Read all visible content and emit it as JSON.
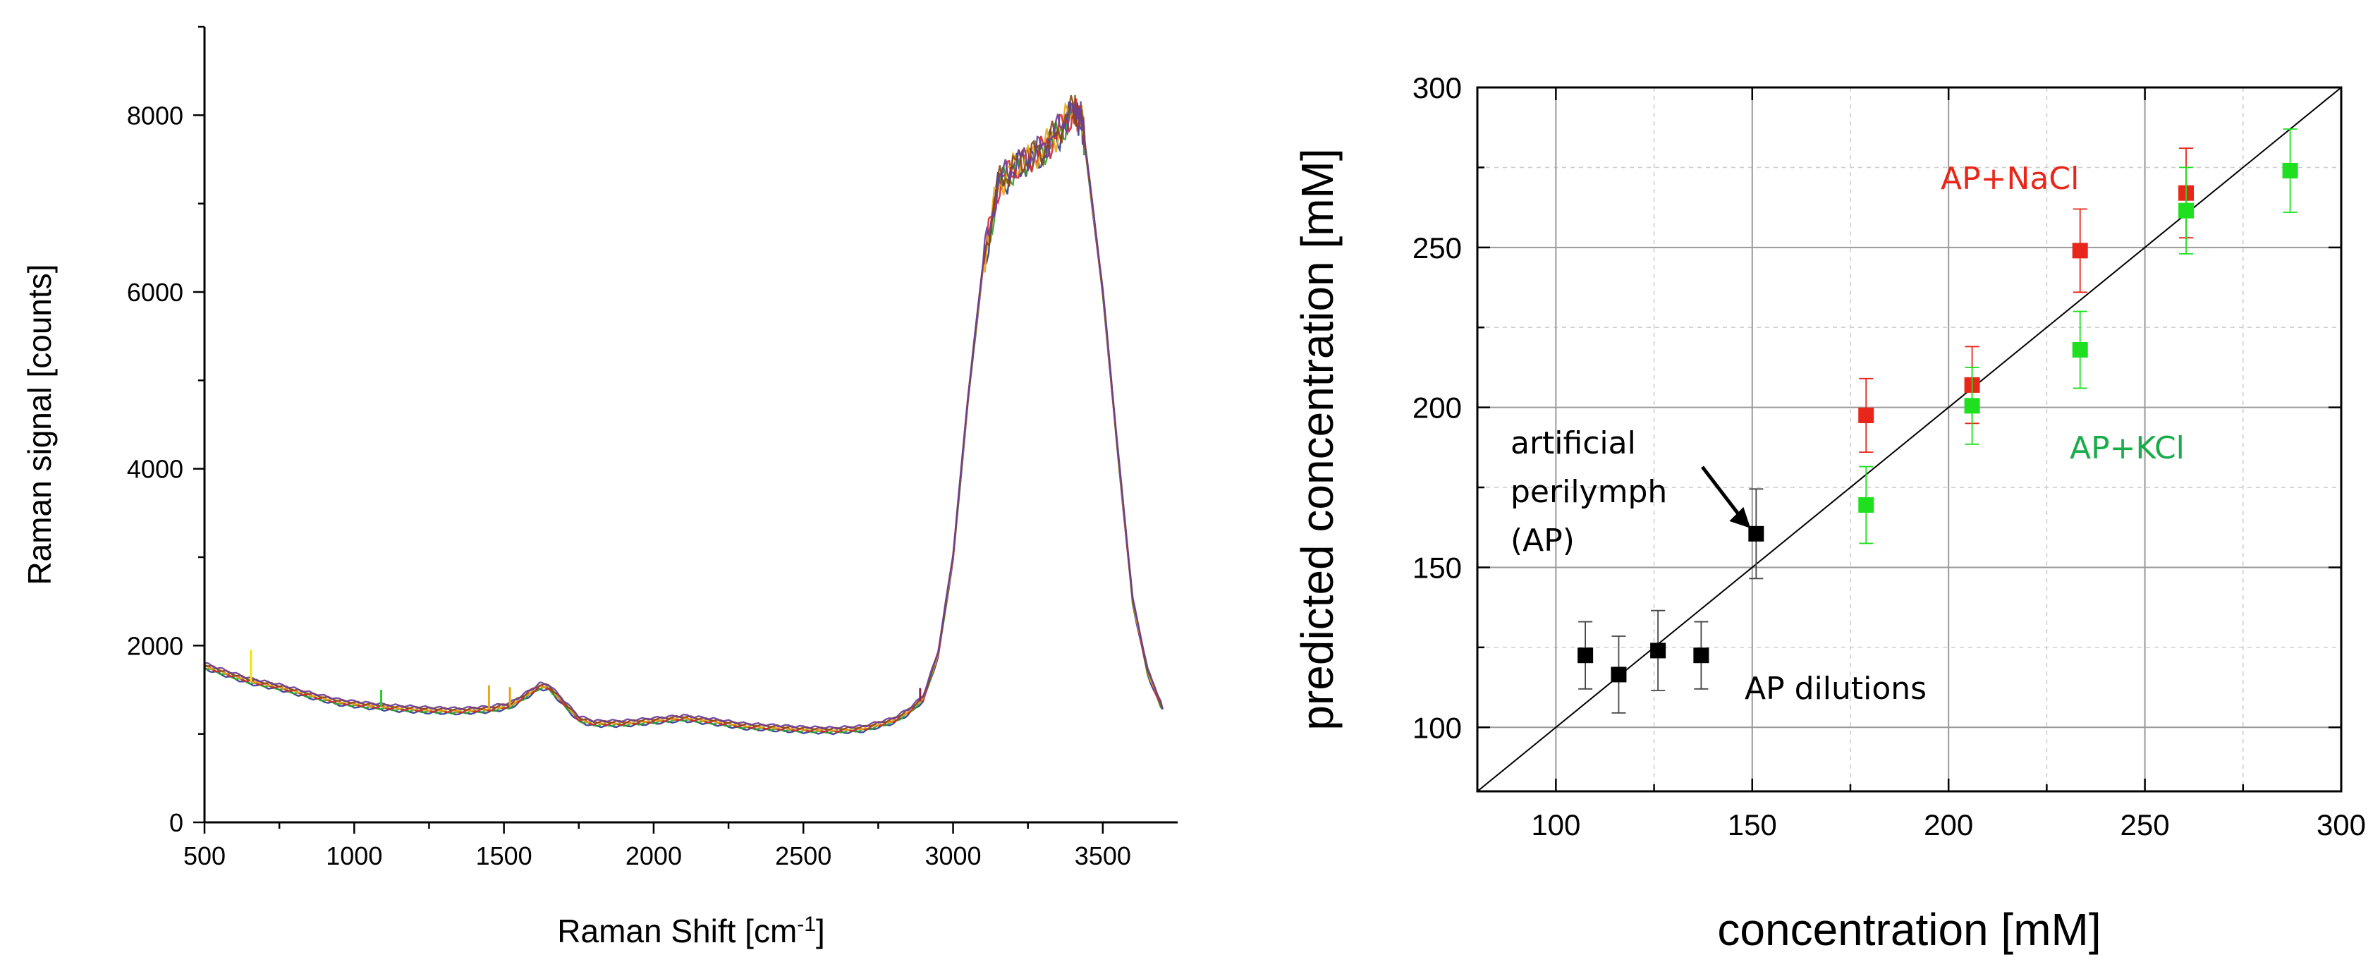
{
  "chart_data": [
    {
      "type": "line",
      "title": "",
      "xlabel": "Raman Shift [cm",
      "xlabel_sup": "-1",
      "xlabel_end": "]",
      "ylabel": "Raman signal [counts]",
      "xlim": [
        500,
        3750
      ],
      "ylim": [
        0,
        9000
      ],
      "xticks": [
        500,
        1000,
        1500,
        2000,
        2500,
        3000,
        3500
      ],
      "xtick_labels": [
        "500",
        "1000",
        "1500",
        "2000",
        "2500",
        "3000",
        "3500"
      ],
      "yticks": [
        0,
        2000,
        4000,
        6000,
        8000
      ],
      "ytick_labels": [
        "0",
        "2000",
        "4000",
        "6000",
        "8000"
      ],
      "spectrum_x": [
        500,
        560,
        650,
        750,
        850,
        950,
        1050,
        1150,
        1250,
        1350,
        1450,
        1520,
        1580,
        1620,
        1650,
        1700,
        1750,
        1800,
        1900,
        2000,
        2100,
        2200,
        2300,
        2400,
        2500,
        2600,
        2700,
        2800,
        2850,
        2900,
        2950,
        3000,
        3050,
        3100,
        3150,
        3200,
        3250,
        3300,
        3350,
        3400,
        3430,
        3450,
        3500,
        3550,
        3600,
        3650,
        3700
      ],
      "spectrum_y": [
        1770,
        1700,
        1600,
        1530,
        1440,
        1360,
        1320,
        1290,
        1270,
        1260,
        1280,
        1320,
        1450,
        1540,
        1530,
        1350,
        1170,
        1120,
        1120,
        1150,
        1180,
        1140,
        1090,
        1070,
        1050,
        1040,
        1060,
        1150,
        1250,
        1400,
        1900,
        3000,
        4800,
        6300,
        7200,
        7400,
        7500,
        7600,
        7800,
        8050,
        7950,
        7400,
        6000,
        4200,
        2500,
        1700,
        1280
      ],
      "series_colors": [
        "#2a3a8c",
        "#2ea02e",
        "#d62728",
        "#e6a817",
        "#8b4513",
        "#6a3d9a"
      ],
      "spike_x": [
        655,
        1090,
        1450,
        1520,
        2890
      ],
      "spike_y": [
        1950,
        1500,
        1550,
        1530,
        1520
      ],
      "spike_colors": [
        "#f2e600",
        "#2ecc2e",
        "#e6a817",
        "#e6a817",
        "#8b2252"
      ]
    },
    {
      "type": "scatter",
      "title": "",
      "xlabel": "concentration [mM]",
      "ylabel": "predicted concentration [mM]",
      "xlim": [
        80,
        300
      ],
      "ylim": [
        80,
        300
      ],
      "xticks": [
        100,
        150,
        200,
        250,
        300
      ],
      "xtick_labels": [
        "100",
        "150",
        "200",
        "250",
        "300"
      ],
      "yticks": [
        100,
        150,
        200,
        250,
        300
      ],
      "ytick_labels": [
        "100",
        "150",
        "200",
        "250",
        "300"
      ],
      "reference_line": "y = x",
      "series": [
        {
          "name": "AP dilutions",
          "color": "#000000",
          "x": [
            107.5,
            116,
            126,
            137,
            151
          ],
          "y": [
            122.5,
            116.5,
            124,
            122.5,
            160.5
          ],
          "err": [
            10.5,
            12,
            12.5,
            10.5,
            14
          ]
        },
        {
          "name": "AP+NaCl",
          "color": "#e8261a",
          "x": [
            179,
            206,
            233.5,
            260.5
          ],
          "y": [
            197.5,
            207,
            249,
            267
          ],
          "err": [
            11.5,
            12,
            13,
            14
          ]
        },
        {
          "name": "AP+KCl",
          "color": "#1fe01f",
          "x": [
            179,
            206,
            233.5,
            260.5,
            287
          ],
          "y": [
            169.5,
            200.5,
            218,
            261.5,
            274
          ],
          "err": [
            12,
            12,
            12,
            13.5,
            13
          ]
        }
      ],
      "annotations": {
        "ap_line1": "artificial",
        "ap_line2": "perilymph",
        "ap_line3": "(AP)",
        "dilutions": "AP dilutions",
        "nacl": "AP+NaCl",
        "kcl": "AP+KCl",
        "nacl_color": "#e8261a",
        "kcl_color": "#1aab4a"
      }
    }
  ]
}
